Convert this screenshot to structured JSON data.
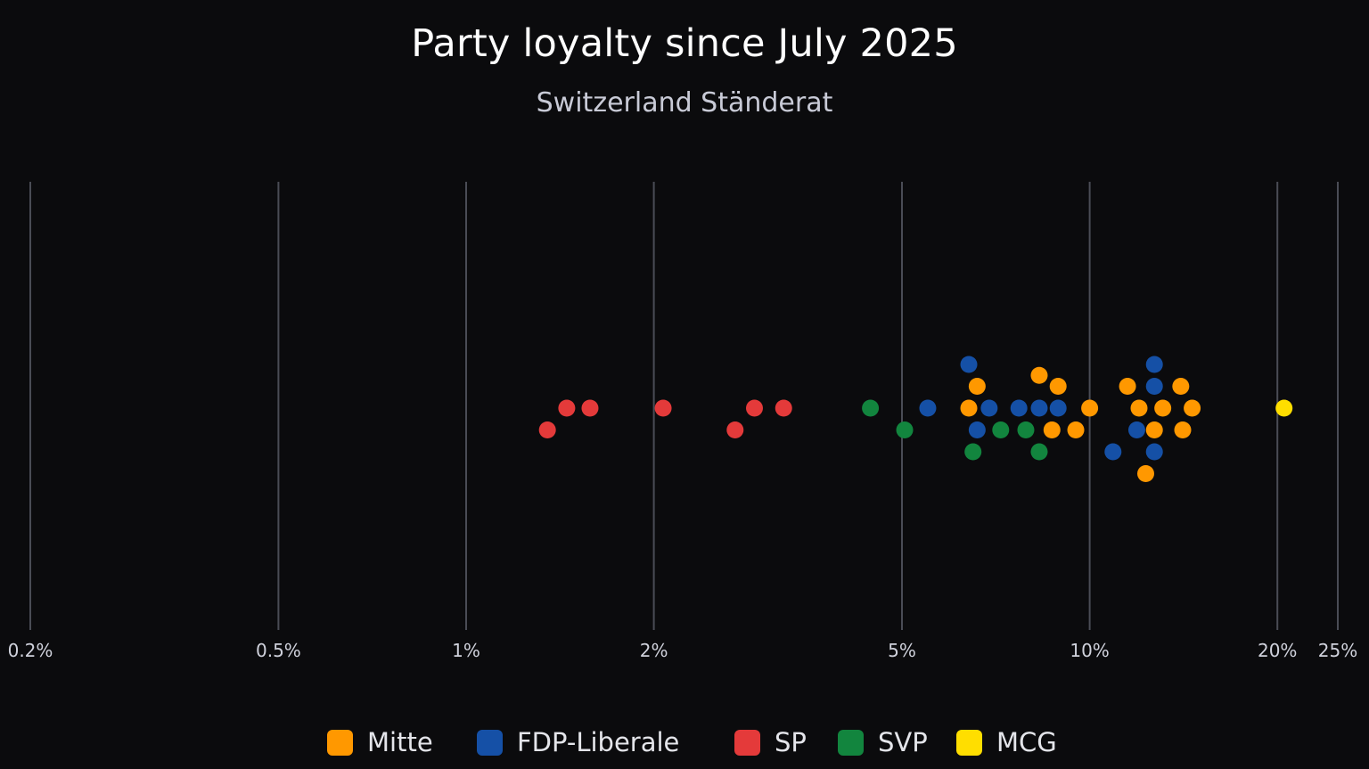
{
  "chart_data": {
    "type": "scatter",
    "title": "Party loyalty since July 2025",
    "subtitle": "Switzerland Ständerat",
    "x_scale": "log",
    "x_unit": "%",
    "xlim": [
      0.2,
      25
    ],
    "x_ticks": [
      {
        "value": 0.2,
        "label": "0.2%"
      },
      {
        "value": 0.5,
        "label": "0.5%"
      },
      {
        "value": 1,
        "label": "1%"
      },
      {
        "value": 2,
        "label": "2%"
      },
      {
        "value": 5,
        "label": "5%"
      },
      {
        "value": 10,
        "label": "10%"
      },
      {
        "value": 20,
        "label": "20%"
      },
      {
        "value": 25,
        "label": "25%"
      }
    ],
    "grid": true,
    "legend_position": "bottom",
    "series": [
      {
        "name": "Mitte",
        "color": "#ff9800",
        "points": [
          [
            6.6,
            1
          ],
          [
            8.3,
            1.5
          ],
          [
            8.9,
            1
          ],
          [
            11.5,
            1
          ],
          [
            14.0,
            1
          ],
          [
            6.4,
            0
          ],
          [
            10.0,
            0
          ],
          [
            12.0,
            0
          ],
          [
            13.1,
            0
          ],
          [
            14.6,
            0
          ],
          [
            8.7,
            -1
          ],
          [
            9.5,
            -1
          ],
          [
            12.7,
            -1
          ],
          [
            14.1,
            -1
          ],
          [
            12.3,
            -3
          ]
        ]
      },
      {
        "name": "FDP-Liberale",
        "color": "#1550a6",
        "points": [
          [
            6.4,
            2
          ],
          [
            12.7,
            2
          ],
          [
            12.7,
            1
          ],
          [
            5.5,
            0
          ],
          [
            6.9,
            0
          ],
          [
            7.7,
            0
          ],
          [
            8.3,
            0
          ],
          [
            8.9,
            0
          ],
          [
            6.6,
            -1
          ],
          [
            11.9,
            -1
          ],
          [
            10.9,
            -2
          ],
          [
            12.7,
            -2
          ]
        ]
      },
      {
        "name": "SP",
        "color": "#e43a3a",
        "points": [
          [
            1.45,
            0
          ],
          [
            1.58,
            0
          ],
          [
            2.07,
            0
          ],
          [
            2.9,
            0
          ],
          [
            3.23,
            0
          ],
          [
            1.35,
            -1
          ],
          [
            2.7,
            -1
          ]
        ]
      },
      {
        "name": "SVP",
        "color": "#12853e",
        "points": [
          [
            4.45,
            0
          ],
          [
            5.05,
            -1
          ],
          [
            7.2,
            -1
          ],
          [
            7.9,
            -1
          ],
          [
            6.5,
            -2
          ],
          [
            8.3,
            -2
          ]
        ]
      },
      {
        "name": "MCG",
        "color": "#ffde00",
        "points": [
          [
            20.5,
            0
          ]
        ]
      }
    ]
  }
}
